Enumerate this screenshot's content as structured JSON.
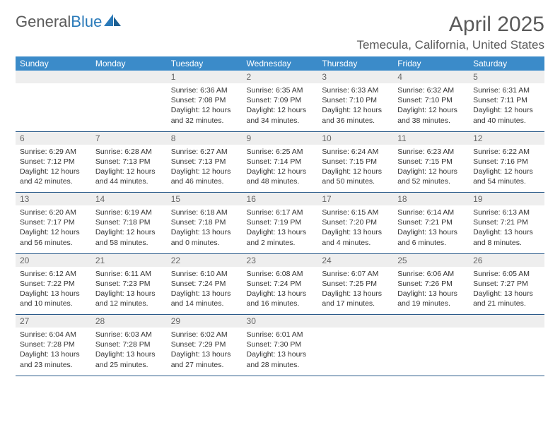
{
  "logo": {
    "text1": "General",
    "text2": "Blue"
  },
  "header": {
    "month_title": "April 2025",
    "location": "Temecula, California, United States"
  },
  "colors": {
    "header_bg": "#3b8bc9",
    "header_text": "#ffffff",
    "daynum_bg": "#eeeeee",
    "border": "#2a5a8a",
    "logo_gray": "#5a5a5a",
    "logo_blue": "#2a7ab9"
  },
  "day_headers": [
    "Sunday",
    "Monday",
    "Tuesday",
    "Wednesday",
    "Thursday",
    "Friday",
    "Saturday"
  ],
  "weeks": [
    {
      "nums": [
        "",
        "",
        "1",
        "2",
        "3",
        "4",
        "5"
      ],
      "cells": [
        "",
        "",
        "Sunrise: 6:36 AM\nSunset: 7:08 PM\nDaylight: 12 hours and 32 minutes.",
        "Sunrise: 6:35 AM\nSunset: 7:09 PM\nDaylight: 12 hours and 34 minutes.",
        "Sunrise: 6:33 AM\nSunset: 7:10 PM\nDaylight: 12 hours and 36 minutes.",
        "Sunrise: 6:32 AM\nSunset: 7:10 PM\nDaylight: 12 hours and 38 minutes.",
        "Sunrise: 6:31 AM\nSunset: 7:11 PM\nDaylight: 12 hours and 40 minutes."
      ]
    },
    {
      "nums": [
        "6",
        "7",
        "8",
        "9",
        "10",
        "11",
        "12"
      ],
      "cells": [
        "Sunrise: 6:29 AM\nSunset: 7:12 PM\nDaylight: 12 hours and 42 minutes.",
        "Sunrise: 6:28 AM\nSunset: 7:13 PM\nDaylight: 12 hours and 44 minutes.",
        "Sunrise: 6:27 AM\nSunset: 7:13 PM\nDaylight: 12 hours and 46 minutes.",
        "Sunrise: 6:25 AM\nSunset: 7:14 PM\nDaylight: 12 hours and 48 minutes.",
        "Sunrise: 6:24 AM\nSunset: 7:15 PM\nDaylight: 12 hours and 50 minutes.",
        "Sunrise: 6:23 AM\nSunset: 7:15 PM\nDaylight: 12 hours and 52 minutes.",
        "Sunrise: 6:22 AM\nSunset: 7:16 PM\nDaylight: 12 hours and 54 minutes."
      ]
    },
    {
      "nums": [
        "13",
        "14",
        "15",
        "16",
        "17",
        "18",
        "19"
      ],
      "cells": [
        "Sunrise: 6:20 AM\nSunset: 7:17 PM\nDaylight: 12 hours and 56 minutes.",
        "Sunrise: 6:19 AM\nSunset: 7:18 PM\nDaylight: 12 hours and 58 minutes.",
        "Sunrise: 6:18 AM\nSunset: 7:18 PM\nDaylight: 13 hours and 0 minutes.",
        "Sunrise: 6:17 AM\nSunset: 7:19 PM\nDaylight: 13 hours and 2 minutes.",
        "Sunrise: 6:15 AM\nSunset: 7:20 PM\nDaylight: 13 hours and 4 minutes.",
        "Sunrise: 6:14 AM\nSunset: 7:21 PM\nDaylight: 13 hours and 6 minutes.",
        "Sunrise: 6:13 AM\nSunset: 7:21 PM\nDaylight: 13 hours and 8 minutes."
      ]
    },
    {
      "nums": [
        "20",
        "21",
        "22",
        "23",
        "24",
        "25",
        "26"
      ],
      "cells": [
        "Sunrise: 6:12 AM\nSunset: 7:22 PM\nDaylight: 13 hours and 10 minutes.",
        "Sunrise: 6:11 AM\nSunset: 7:23 PM\nDaylight: 13 hours and 12 minutes.",
        "Sunrise: 6:10 AM\nSunset: 7:24 PM\nDaylight: 13 hours and 14 minutes.",
        "Sunrise: 6:08 AM\nSunset: 7:24 PM\nDaylight: 13 hours and 16 minutes.",
        "Sunrise: 6:07 AM\nSunset: 7:25 PM\nDaylight: 13 hours and 17 minutes.",
        "Sunrise: 6:06 AM\nSunset: 7:26 PM\nDaylight: 13 hours and 19 minutes.",
        "Sunrise: 6:05 AM\nSunset: 7:27 PM\nDaylight: 13 hours and 21 minutes."
      ]
    },
    {
      "nums": [
        "27",
        "28",
        "29",
        "30",
        "",
        "",
        ""
      ],
      "cells": [
        "Sunrise: 6:04 AM\nSunset: 7:28 PM\nDaylight: 13 hours and 23 minutes.",
        "Sunrise: 6:03 AM\nSunset: 7:28 PM\nDaylight: 13 hours and 25 minutes.",
        "Sunrise: 6:02 AM\nSunset: 7:29 PM\nDaylight: 13 hours and 27 minutes.",
        "Sunrise: 6:01 AM\nSunset: 7:30 PM\nDaylight: 13 hours and 28 minutes.",
        "",
        "",
        ""
      ]
    }
  ]
}
